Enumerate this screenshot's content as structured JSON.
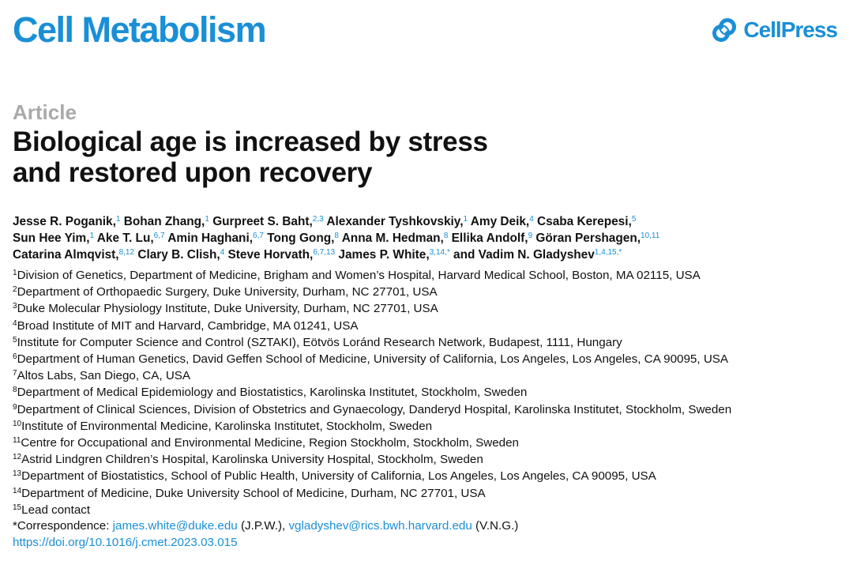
{
  "header": {
    "journal": "Cell Metabolism",
    "publisher": "CellPress",
    "publisher_logo_icon": "cellpress-logo-icon",
    "accent_color": "#1a8fd6"
  },
  "article": {
    "kind": "Article",
    "title_line1": "Biological age is increased by stress",
    "title_line2": "and restored upon recovery"
  },
  "authors": [
    {
      "name": "Jesse R. Poganik,",
      "sup": "1"
    },
    {
      "name": "Bohan Zhang,",
      "sup": "1"
    },
    {
      "name": "Gurpreet S. Baht,",
      "sup": "2,3"
    },
    {
      "name": "Alexander Tyshkovskiy,",
      "sup": "1"
    },
    {
      "name": "Amy Deik,",
      "sup": "4"
    },
    {
      "name": "Csaba Kerepesi,",
      "sup": "5"
    },
    {
      "name": "Sun Hee Yim,",
      "sup": "1"
    },
    {
      "name": "Ake T. Lu,",
      "sup": "6,7"
    },
    {
      "name": "Amin Haghani,",
      "sup": "6,7"
    },
    {
      "name": "Tong Gong,",
      "sup": "8"
    },
    {
      "name": "Anna M. Hedman,",
      "sup": "8"
    },
    {
      "name": "Ellika Andolf,",
      "sup": "9"
    },
    {
      "name": "Göran Pershagen,",
      "sup": "10,11"
    },
    {
      "name": "Catarina Almqvist,",
      "sup": "8,12"
    },
    {
      "name": "Clary B. Clish,",
      "sup": "4"
    },
    {
      "name": "Steve Horvath,",
      "sup": "6,7,13"
    },
    {
      "name": "James P. White,",
      "sup": "3,14,*"
    },
    {
      "name": "and Vadim N. Gladyshev",
      "sup": "1,4,15,*"
    }
  ],
  "affiliations": [
    {
      "num": "1",
      "text": "Division of Genetics, Department of Medicine, Brigham and Women’s Hospital, Harvard Medical School, Boston, MA 02115, USA"
    },
    {
      "num": "2",
      "text": "Department of Orthopaedic Surgery, Duke University, Durham, NC 27701, USA"
    },
    {
      "num": "3",
      "text": "Duke Molecular Physiology Institute, Duke University, Durham, NC 27701, USA"
    },
    {
      "num": "4",
      "text": "Broad Institute of MIT and Harvard, Cambridge, MA 01241, USA"
    },
    {
      "num": "5",
      "text": "Institute for Computer Science and Control (SZTAKI), Eötvös Loránd Research Network, Budapest, 1111, Hungary"
    },
    {
      "num": "6",
      "text": "Department of Human Genetics, David Geffen School of Medicine, University of California, Los Angeles, Los Angeles, CA 90095, USA"
    },
    {
      "num": "7",
      "text": "Altos Labs, San Diego, CA, USA"
    },
    {
      "num": "8",
      "text": "Department of Medical Epidemiology and Biostatistics, Karolinska Institutet, Stockholm, Sweden"
    },
    {
      "num": "9",
      "text": "Department of Clinical Sciences, Division of Obstetrics and Gynaecology, Danderyd Hospital, Karolinska Institutet, Stockholm, Sweden"
    },
    {
      "num": "10",
      "text": "Institute of Environmental Medicine, Karolinska Institutet, Stockholm, Sweden"
    },
    {
      "num": "11",
      "text": "Centre for Occupational and Environmental Medicine, Region Stockholm, Stockholm, Sweden"
    },
    {
      "num": "12",
      "text": "Astrid Lindgren Children’s Hospital, Karolinska University Hospital, Stockholm, Sweden"
    },
    {
      "num": "13",
      "text": "Department of Biostatistics, School of Public Health, University of California, Los Angeles, Los Angeles, CA 90095, USA"
    },
    {
      "num": "14",
      "text": "Department of Medicine, Duke University School of Medicine, Durham, NC 27701, USA"
    },
    {
      "num": "15",
      "text": "Lead contact"
    }
  ],
  "correspondence": {
    "label": "*Correspondence: ",
    "email1": "james.white@duke.edu",
    "initials1": " (J.P.W.), ",
    "email2": "vgladyshev@rics.bwh.harvard.edu",
    "initials2": " (V.N.G.)"
  },
  "doi": "https://doi.org/10.1016/j.cmet.2023.03.015"
}
